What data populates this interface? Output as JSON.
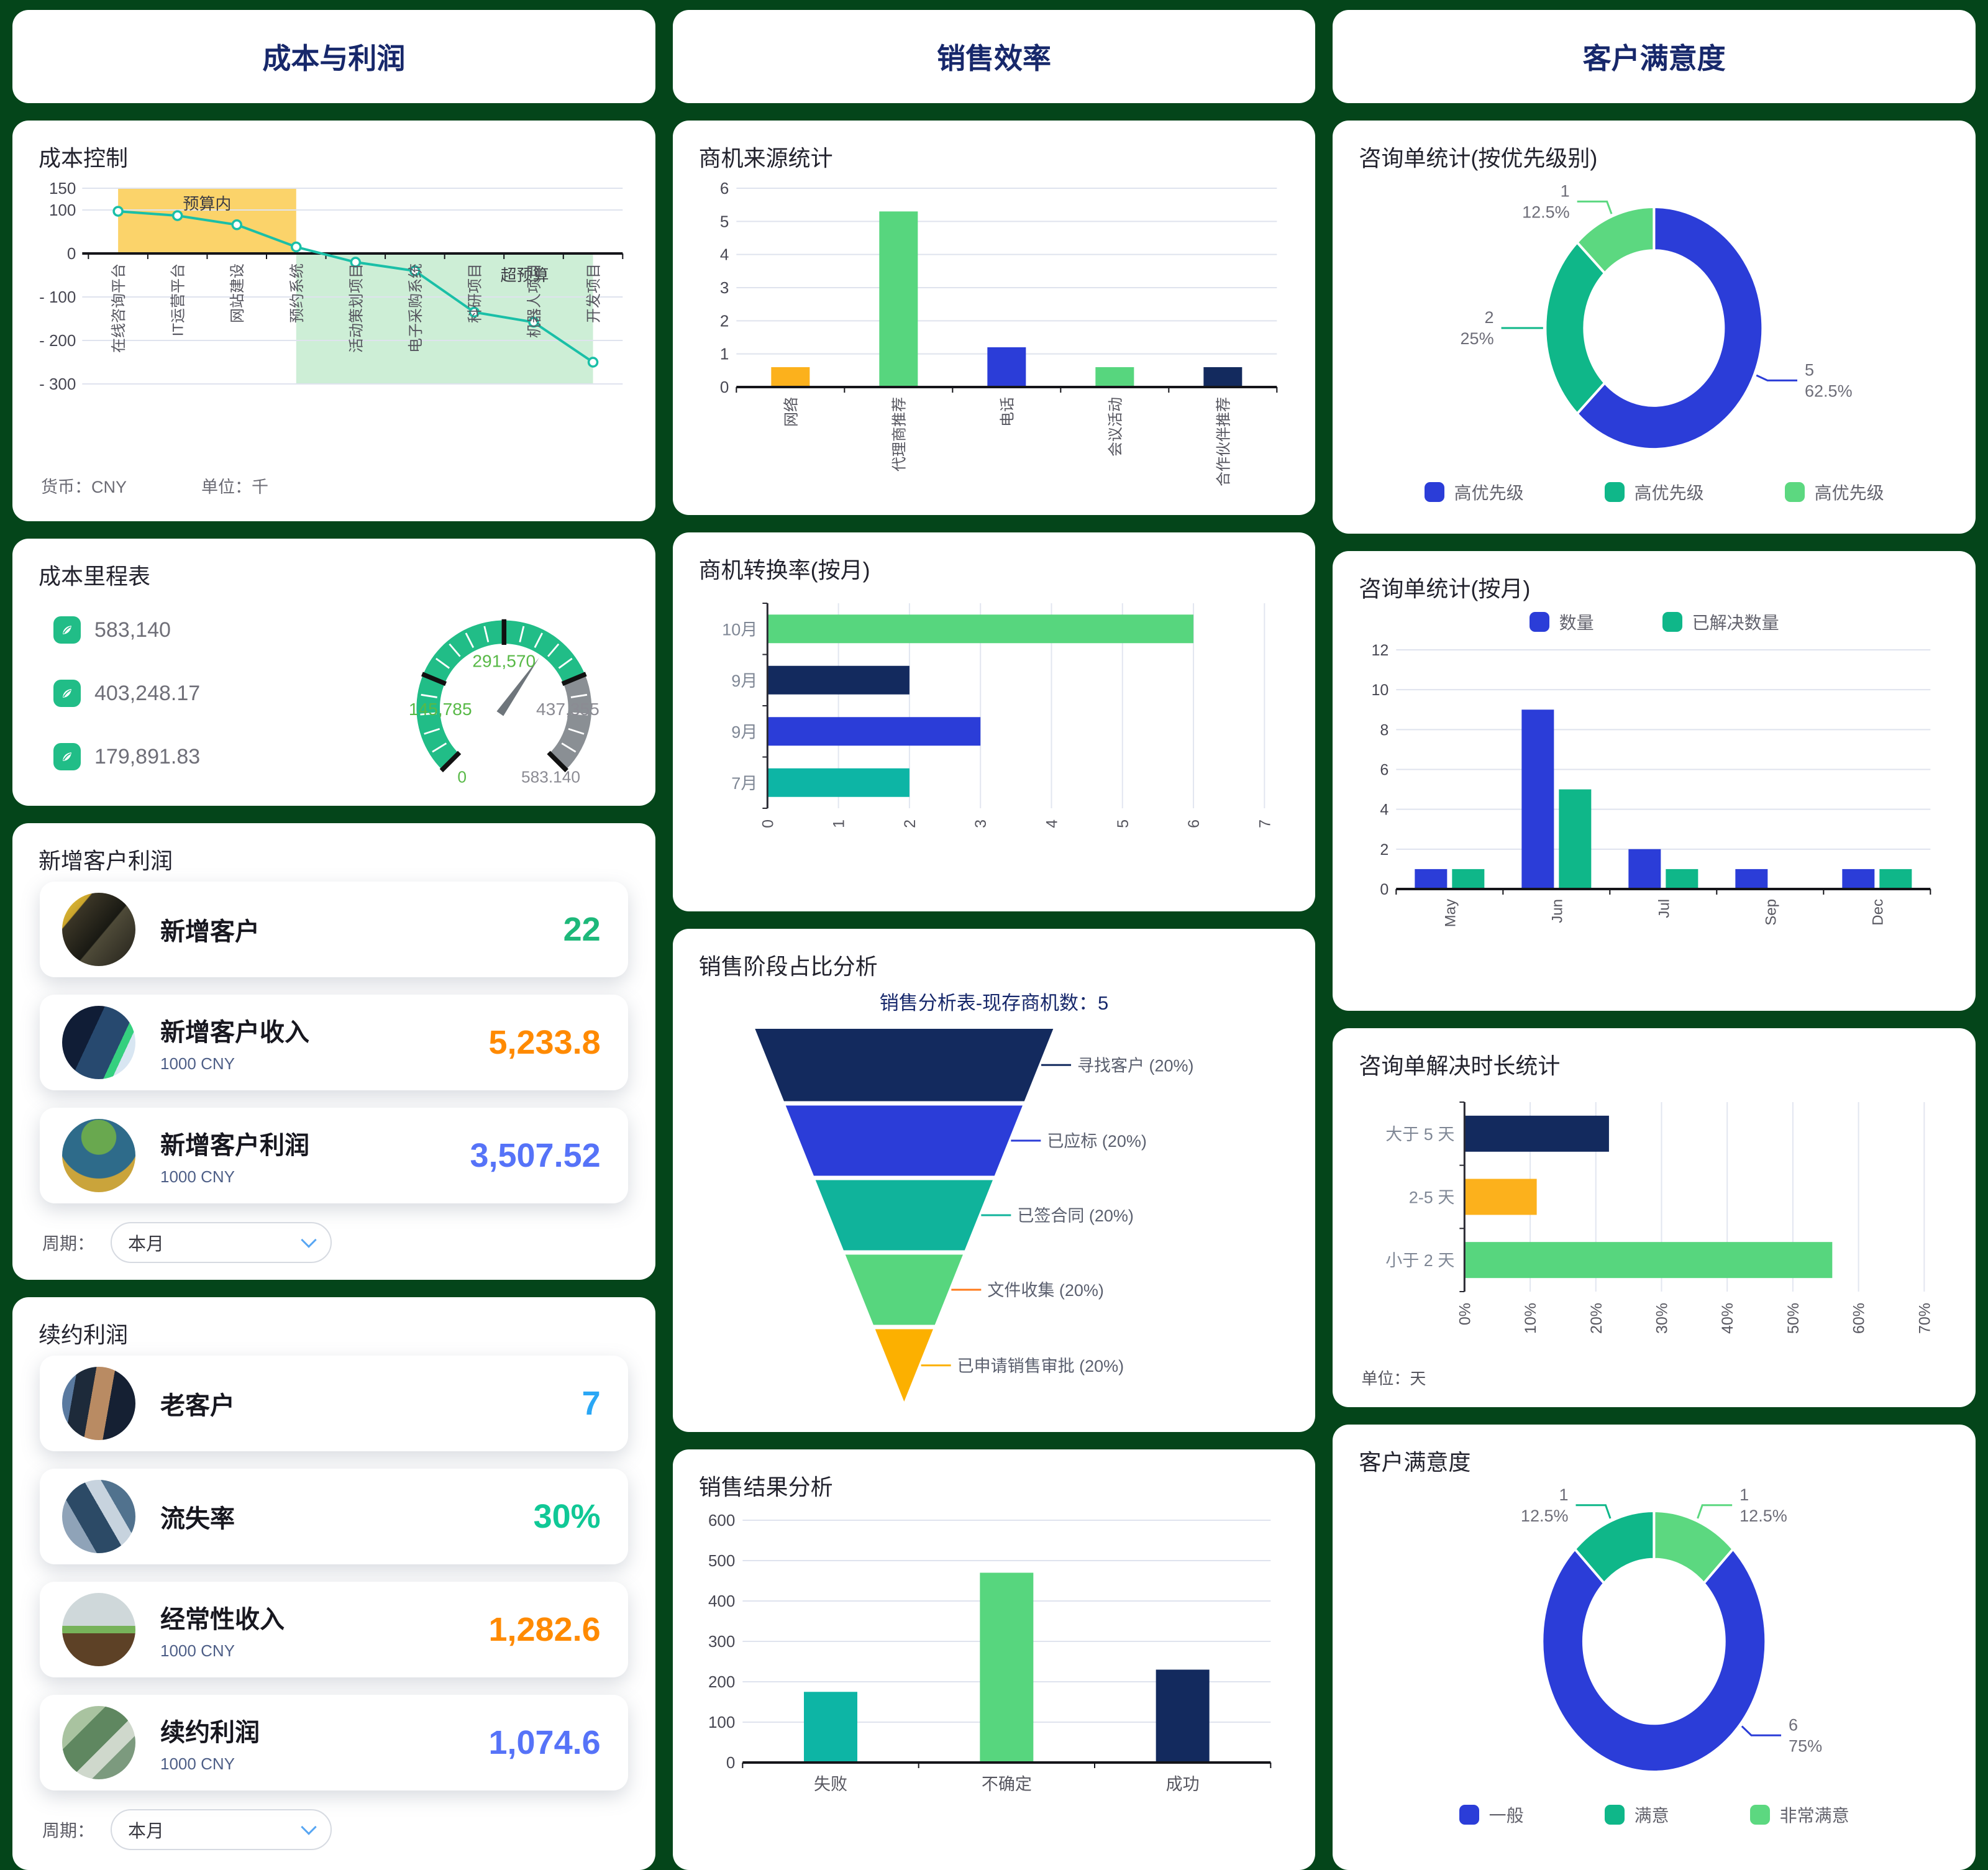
{
  "columns": [
    {
      "header": "成本与利润"
    },
    {
      "header": "销售效率"
    },
    {
      "header": "客户满意度"
    }
  ],
  "kpi_sections": {
    "new_customer": {
      "title": "新增客户利润",
      "rows": [
        {
          "label": "新增客户",
          "sub": "",
          "value": "22",
          "color": "#1db87a"
        },
        {
          "label": "新增客户收入",
          "sub": "1000 CNY",
          "value": "5,233.8",
          "color": "#ff8a00"
        },
        {
          "label": "新增客户利润",
          "sub": "1000 CNY",
          "value": "3,507.52",
          "color": "#5673f8"
        }
      ],
      "period_label": "周期：",
      "period_value": "本月"
    },
    "renewal": {
      "title": "续约利润",
      "rows": [
        {
          "label": "老客户",
          "sub": "",
          "value": "7",
          "color": "#2aa7f5"
        },
        {
          "label": "流失率",
          "sub": "",
          "value": "30%",
          "color": "#10c896"
        },
        {
          "label": "经常性收入",
          "sub": "1000 CNY",
          "value": "1,282.6",
          "color": "#ff8a00"
        },
        {
          "label": "续约利润",
          "sub": "1000 CNY",
          "value": "1,074.6",
          "color": "#5673f8"
        }
      ],
      "period_label": "周期：",
      "period_value": "本月"
    }
  },
  "chart_data": [
    {
      "id": "cost_control",
      "type": "line",
      "title": "成本控制",
      "categories": [
        "在线咨询平台",
        "IT运营平台",
        "网站建设",
        "预约系统",
        "活动策划项目",
        "电子采购系统",
        "科研项目",
        "机器人项目",
        "开发项目"
      ],
      "values": [
        97,
        87,
        66,
        15,
        -20,
        -40,
        -135,
        -158,
        -250
      ],
      "ylim": [
        -300,
        150
      ],
      "yticks": [
        150,
        100,
        0,
        -100,
        -200,
        -300
      ],
      "line_color": "#1abfa7",
      "bands": [
        {
          "label": "预算内",
          "color": "#fbd36a",
          "x_from": 0,
          "x_to": 3,
          "y_from": 0,
          "y_to": 150
        },
        {
          "label": "超预算",
          "color": "#cdeed6",
          "x_from": 3,
          "x_to": 8,
          "y_from": -300,
          "y_to": 0
        }
      ],
      "footnotes": [
        "货币：CNY",
        "单位：千"
      ]
    },
    {
      "id": "cost_gauge",
      "type": "gauge",
      "title": "成本里程表",
      "min": 0,
      "max": 583140,
      "value": 367000,
      "green_to_fraction": 0.75,
      "scale_labels": [
        {
          "text": "0",
          "color": "#58b947",
          "pos": "bottom-left"
        },
        {
          "text": "145,785",
          "color": "#58b947",
          "pos": "mid-left"
        },
        {
          "text": "291,570",
          "color": "#58b947",
          "pos": "top"
        },
        {
          "text": "437,355",
          "color": "#8b8b93",
          "pos": "mid-right"
        },
        {
          "text": "583.140",
          "color": "#8b8b93",
          "pos": "bottom-right"
        }
      ],
      "legend": [
        "583,140",
        "403,248.17",
        "179,891.83"
      ],
      "arc_color": "#21bd87",
      "rest_color": "#8a8f94",
      "needle_color": "#6e757b"
    },
    {
      "id": "opp_source",
      "type": "bar",
      "title": "商机来源统计",
      "categories": [
        "网络",
        "代理商推荐",
        "电话",
        "会议活动",
        "合作伙伴推荐"
      ],
      "values": [
        0.6,
        5.3,
        1.2,
        0.6,
        0.6
      ],
      "colors": [
        "#fcb11c",
        "#57d67e",
        "#2b3dd8",
        "#57d67e",
        "#132a5e"
      ],
      "ylim": [
        0,
        6
      ],
      "yticks": [
        0,
        1,
        2,
        3,
        4,
        5,
        6
      ],
      "rotate_x_labels": true
    },
    {
      "id": "opp_convert",
      "type": "hbar",
      "title": "商机转换率(按月)",
      "categories": [
        "10月",
        "9月",
        "9月",
        "7月"
      ],
      "values": [
        6,
        2,
        3,
        2
      ],
      "colors": [
        "#57d67e",
        "#132a5e",
        "#2b3dd8",
        "#0db5a5"
      ],
      "xlim": [
        0,
        7
      ],
      "xticks": [
        "0",
        "1",
        "2",
        "3",
        "4",
        "5",
        "6",
        "7"
      ]
    },
    {
      "id": "sales_funnel",
      "type": "funnel",
      "title": "销售阶段占比分析",
      "subtitle": "销售分析表-现存商机数：5",
      "stages": [
        {
          "label": "寻找客户 (20%)",
          "value": 20,
          "color": "#132a5e",
          "line_color": "#132a5e"
        },
        {
          "label": "已应标 (20%)",
          "value": 20,
          "color": "#2b3dd8",
          "line_color": "#2b3dd8"
        },
        {
          "label": "已签合同 (20%)",
          "value": 20,
          "color": "#10b39b",
          "line_color": "#10b39b"
        },
        {
          "label": "文件收集 (20%)",
          "value": 20,
          "color": "#57d67e",
          "line_color": "#ff7a1a"
        },
        {
          "label": "已申请销售审批 (20%)",
          "value": 20,
          "color": "#fcb000",
          "line_color": "#fcb000"
        }
      ]
    },
    {
      "id": "sales_result",
      "type": "bar",
      "title": "销售结果分析",
      "categories": [
        "失败",
        "不确定",
        "成功"
      ],
      "values": [
        175,
        470,
        230
      ],
      "colors": [
        "#0db5a5",
        "#57d67e",
        "#132a5e"
      ],
      "ylim": [
        0,
        600
      ],
      "yticks": [
        0,
        100,
        200,
        300,
        400,
        500,
        600
      ],
      "rotate_x_labels": false
    },
    {
      "id": "inq_priority",
      "type": "donut",
      "title": "咨询单统计(按优先级别)",
      "slices": [
        {
          "legend": "高优先级",
          "value": 5,
          "pct": "62.5%",
          "color": "#2b3dd8"
        },
        {
          "legend": "高优先级",
          "value": 2,
          "pct": "25%",
          "color": "#0fb789"
        },
        {
          "legend": "高优先级",
          "value": 1,
          "pct": "12.5%",
          "color": "#5cd880"
        }
      ],
      "legend": [
        {
          "label": "高优先级",
          "color": "#2b3dd8"
        },
        {
          "label": "高优先级",
          "color": "#0fb789"
        },
        {
          "label": "高优先级",
          "color": "#5cd880"
        }
      ]
    },
    {
      "id": "inq_month",
      "type": "groupbar",
      "title": "咨询单统计(按月)",
      "categories": [
        "May",
        "Jun",
        "Jul",
        "Sep",
        "Dec"
      ],
      "series": [
        {
          "name": "数量",
          "color": "#2b3dd8",
          "values": [
            1,
            9,
            2,
            1,
            1
          ]
        },
        {
          "name": "已解决数量",
          "color": "#0fb789",
          "values": [
            1,
            5,
            1,
            0,
            1
          ]
        }
      ],
      "legend": [
        {
          "label": "数量",
          "color": "#2b3dd8"
        },
        {
          "label": "已解决数量",
          "color": "#0fb789"
        }
      ],
      "ylim": [
        0,
        12
      ],
      "yticks": [
        0,
        2,
        4,
        6,
        8,
        10,
        12
      ]
    },
    {
      "id": "inq_duration",
      "type": "hbar",
      "title": "咨询单解决时长统计",
      "categories": [
        "大于 5 天",
        "2-5 天",
        "小于 2 天"
      ],
      "values": [
        22,
        11,
        56
      ],
      "colors": [
        "#132a5e",
        "#fcb11c",
        "#57d67e"
      ],
      "xlim": [
        0,
        70
      ],
      "xticks": [
        "0%",
        "10%",
        "20%",
        "30%",
        "40%",
        "50%",
        "60%",
        "70%"
      ],
      "footer": "单位：天"
    },
    {
      "id": "satisfaction",
      "type": "donut",
      "title": "客户满意度",
      "slices": [
        {
          "legend": "非常满意",
          "value": 1,
          "pct": "12.5%",
          "color": "#5cd880"
        },
        {
          "legend": "一般",
          "value": 6,
          "pct": "75%",
          "color": "#2b3dd8",
          "label_t": 0.36
        },
        {
          "legend": "满意",
          "value": 1,
          "pct": "12.5%",
          "color": "#0fb789"
        }
      ],
      "legend": [
        {
          "label": "一般",
          "color": "#2b3dd8"
        },
        {
          "label": "满意",
          "color": "#0fb789"
        },
        {
          "label": "非常满意",
          "color": "#5cd880"
        }
      ]
    }
  ]
}
